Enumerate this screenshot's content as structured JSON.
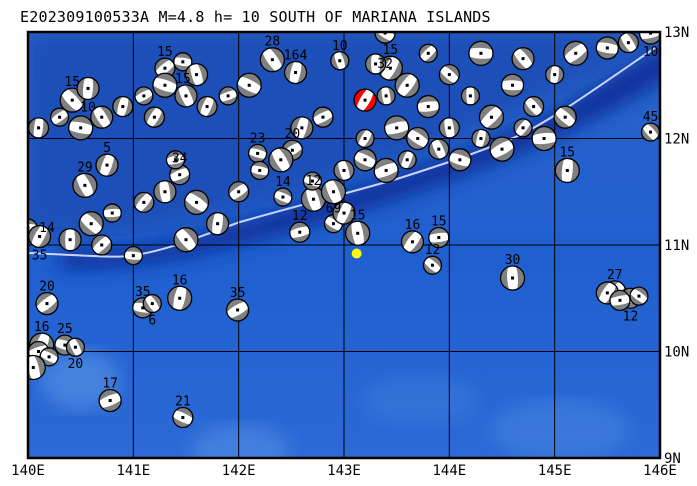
{
  "title": "E202309100533A M=4.8 h= 10 SOUTH OF MARIANA ISLANDS",
  "map": {
    "lon_range": [
      140,
      146
    ],
    "lat_range": [
      9,
      13
    ],
    "lon_labels": [
      "140E",
      "141E",
      "142E",
      "143E",
      "144E",
      "145E",
      "146E"
    ],
    "lat_labels": [
      "13N",
      "12N",
      "11N",
      "10N",
      "9N"
    ],
    "colors": {
      "ocean": "#1f5fcf",
      "deep": "#0a2f9a",
      "shallow": "#5a95e6",
      "trench_line": "#c8d4ff",
      "ball_fill": "#808080",
      "main_event": "#ff0000",
      "epicenter": "#ffff00"
    },
    "epicenter": {
      "lon": 143.12,
      "lat": 10.92
    },
    "main_event": {
      "lon": 143.2,
      "lat": 12.36
    },
    "events": [
      {
        "lon": 140.0,
        "lat": 11.16,
        "label": "14"
      },
      {
        "lon": 140.42,
        "lat": 12.36,
        "label": "15"
      },
      {
        "lon": 140.57,
        "lat": 12.47,
        "label": "10"
      },
      {
        "lon": 141.3,
        "lat": 12.66,
        "label": "15"
      },
      {
        "lon": 141.47,
        "lat": 12.72,
        "label": "15"
      },
      {
        "lon": 142.32,
        "lat": 12.74,
        "label": "28"
      },
      {
        "lon": 142.54,
        "lat": 12.62,
        "label": "164"
      },
      {
        "lon": 142.51,
        "lat": 11.89,
        "label": "20"
      },
      {
        "lon": 142.18,
        "lat": 11.86,
        "label": "23"
      },
      {
        "lon": 140.54,
        "lat": 11.56,
        "label": "29"
      },
      {
        "lon": 140.75,
        "lat": 11.75,
        "label": "5"
      },
      {
        "lon": 141.44,
        "lat": 11.66,
        "label": "34"
      },
      {
        "lon": 142.42,
        "lat": 11.45,
        "label": "14"
      },
      {
        "lon": 142.71,
        "lat": 11.43,
        "label": "12"
      },
      {
        "lon": 140.11,
        "lat": 11.08,
        "label": "35"
      },
      {
        "lon": 142.58,
        "lat": 11.12,
        "label": "12"
      },
      {
        "lon": 142.9,
        "lat": 11.2,
        "label": "69"
      },
      {
        "lon": 143.13,
        "lat": 11.11,
        "label": "15"
      },
      {
        "lon": 143.65,
        "lat": 11.03,
        "label": "16"
      },
      {
        "lon": 143.9,
        "lat": 11.07,
        "label": "15"
      },
      {
        "lon": 143.84,
        "lat": 10.81,
        "label": "12"
      },
      {
        "lon": 144.6,
        "lat": 10.69,
        "label": "30"
      },
      {
        "lon": 145.57,
        "lat": 10.56,
        "label": "27"
      },
      {
        "lon": 145.72,
        "lat": 10.5,
        "label": "12"
      },
      {
        "lon": 145.91,
        "lat": 12.06,
        "label": "45"
      },
      {
        "lon": 145.12,
        "lat": 11.7,
        "label": "15"
      },
      {
        "lon": 140.18,
        "lat": 10.45,
        "label": "20"
      },
      {
        "lon": 141.09,
        "lat": 10.41,
        "label": "35"
      },
      {
        "lon": 141.18,
        "lat": 10.45,
        "label": "6"
      },
      {
        "lon": 141.44,
        "lat": 10.5,
        "label": "16"
      },
      {
        "lon": 141.99,
        "lat": 10.39,
        "label": "35"
      },
      {
        "lon": 140.35,
        "lat": 10.06,
        "label": "25"
      },
      {
        "lon": 140.45,
        "lat": 10.04,
        "label": "20"
      },
      {
        "lon": 140.13,
        "lat": 10.06,
        "label": "16"
      },
      {
        "lon": 140.78,
        "lat": 9.54,
        "label": "17"
      },
      {
        "lon": 141.47,
        "lat": 9.38,
        "label": "21"
      },
      {
        "lon": 142.96,
        "lat": 12.73,
        "label": "10"
      },
      {
        "lon": 143.44,
        "lat": 12.66,
        "label": "15"
      },
      {
        "lon": 145.91,
        "lat": 12.99,
        "label": "10"
      },
      {
        "lon": 143.39,
        "lat": 12.99,
        "label": "32"
      },
      {
        "lon": 143.4,
        "lat": 12.4,
        "label": ""
      },
      {
        "lon": 143.6,
        "lat": 12.5,
        "label": ""
      },
      {
        "lon": 143.8,
        "lat": 12.3,
        "label": ""
      },
      {
        "lon": 144.0,
        "lat": 12.6,
        "label": ""
      },
      {
        "lon": 144.2,
        "lat": 12.4,
        "label": ""
      },
      {
        "lon": 144.4,
        "lat": 12.2,
        "label": ""
      },
      {
        "lon": 144.6,
        "lat": 12.5,
        "label": ""
      },
      {
        "lon": 144.8,
        "lat": 12.3,
        "label": ""
      },
      {
        "lon": 145.0,
        "lat": 12.6,
        "label": ""
      },
      {
        "lon": 145.2,
        "lat": 12.8,
        "label": ""
      },
      {
        "lon": 145.5,
        "lat": 12.85,
        "label": ""
      },
      {
        "lon": 145.7,
        "lat": 12.9,
        "label": ""
      },
      {
        "lon": 144.3,
        "lat": 12.0,
        "label": ""
      },
      {
        "lon": 144.5,
        "lat": 11.9,
        "label": ""
      },
      {
        "lon": 144.1,
        "lat": 11.8,
        "label": ""
      },
      {
        "lon": 143.9,
        "lat": 11.9,
        "label": ""
      },
      {
        "lon": 143.6,
        "lat": 11.8,
        "label": ""
      },
      {
        "lon": 143.4,
        "lat": 11.7,
        "label": ""
      },
      {
        "lon": 143.2,
        "lat": 11.8,
        "label": ""
      },
      {
        "lon": 143.0,
        "lat": 11.7,
        "label": ""
      },
      {
        "lon": 143.2,
        "lat": 12.0,
        "label": ""
      },
      {
        "lon": 143.5,
        "lat": 12.1,
        "label": ""
      },
      {
        "lon": 143.7,
        "lat": 12.0,
        "label": ""
      },
      {
        "lon": 144.0,
        "lat": 12.1,
        "label": ""
      },
      {
        "lon": 144.7,
        "lat": 12.1,
        "label": ""
      },
      {
        "lon": 144.9,
        "lat": 12.0,
        "label": ""
      },
      {
        "lon": 145.1,
        "lat": 12.2,
        "label": ""
      },
      {
        "lon": 143.3,
        "lat": 12.7,
        "label": ""
      },
      {
        "lon": 143.8,
        "lat": 12.8,
        "label": ""
      },
      {
        "lon": 144.3,
        "lat": 12.8,
        "label": ""
      },
      {
        "lon": 144.7,
        "lat": 12.75,
        "label": ""
      },
      {
        "lon": 140.1,
        "lat": 12.1,
        "label": ""
      },
      {
        "lon": 140.3,
        "lat": 12.2,
        "label": ""
      },
      {
        "lon": 140.5,
        "lat": 12.1,
        "label": ""
      },
      {
        "lon": 140.7,
        "lat": 12.2,
        "label": ""
      },
      {
        "lon": 140.9,
        "lat": 12.3,
        "label": ""
      },
      {
        "lon": 141.1,
        "lat": 12.4,
        "label": ""
      },
      {
        "lon": 141.3,
        "lat": 12.5,
        "label": ""
      },
      {
        "lon": 141.5,
        "lat": 12.4,
        "label": ""
      },
      {
        "lon": 141.7,
        "lat": 12.3,
        "label": ""
      },
      {
        "lon": 141.9,
        "lat": 12.4,
        "label": ""
      },
      {
        "lon": 142.1,
        "lat": 12.5,
        "label": ""
      },
      {
        "lon": 141.6,
        "lat": 12.6,
        "label": ""
      },
      {
        "lon": 141.2,
        "lat": 12.2,
        "label": ""
      },
      {
        "lon": 141.4,
        "lat": 11.8,
        "label": ""
      },
      {
        "lon": 141.6,
        "lat": 11.4,
        "label": ""
      },
      {
        "lon": 141.3,
        "lat": 11.5,
        "label": ""
      },
      {
        "lon": 141.1,
        "lat": 11.4,
        "label": ""
      },
      {
        "lon": 140.8,
        "lat": 11.3,
        "label": ""
      },
      {
        "lon": 140.6,
        "lat": 11.2,
        "label": ""
      },
      {
        "lon": 140.4,
        "lat": 11.05,
        "label": ""
      },
      {
        "lon": 140.7,
        "lat": 11.0,
        "label": ""
      },
      {
        "lon": 141.0,
        "lat": 10.9,
        "label": ""
      },
      {
        "lon": 141.5,
        "lat": 11.05,
        "label": ""
      },
      {
        "lon": 141.8,
        "lat": 11.2,
        "label": ""
      },
      {
        "lon": 142.0,
        "lat": 11.5,
        "label": ""
      },
      {
        "lon": 142.2,
        "lat": 11.7,
        "label": ""
      },
      {
        "lon": 142.4,
        "lat": 11.8,
        "label": ""
      },
      {
        "lon": 142.6,
        "lat": 12.1,
        "label": ""
      },
      {
        "lon": 142.8,
        "lat": 12.2,
        "label": ""
      },
      {
        "lon": 142.7,
        "lat": 11.6,
        "label": ""
      },
      {
        "lon": 142.9,
        "lat": 11.5,
        "label": ""
      },
      {
        "lon": 143.0,
        "lat": 11.3,
        "label": ""
      },
      {
        "lon": 140.1,
        "lat": 10.0,
        "label": ""
      },
      {
        "lon": 140.2,
        "lat": 9.95,
        "label": ""
      },
      {
        "lon": 140.05,
        "lat": 9.85,
        "label": ""
      },
      {
        "lon": 145.5,
        "lat": 10.55,
        "label": ""
      },
      {
        "lon": 145.62,
        "lat": 10.48,
        "label": ""
      },
      {
        "lon": 145.8,
        "lat": 10.52,
        "label": ""
      }
    ]
  }
}
